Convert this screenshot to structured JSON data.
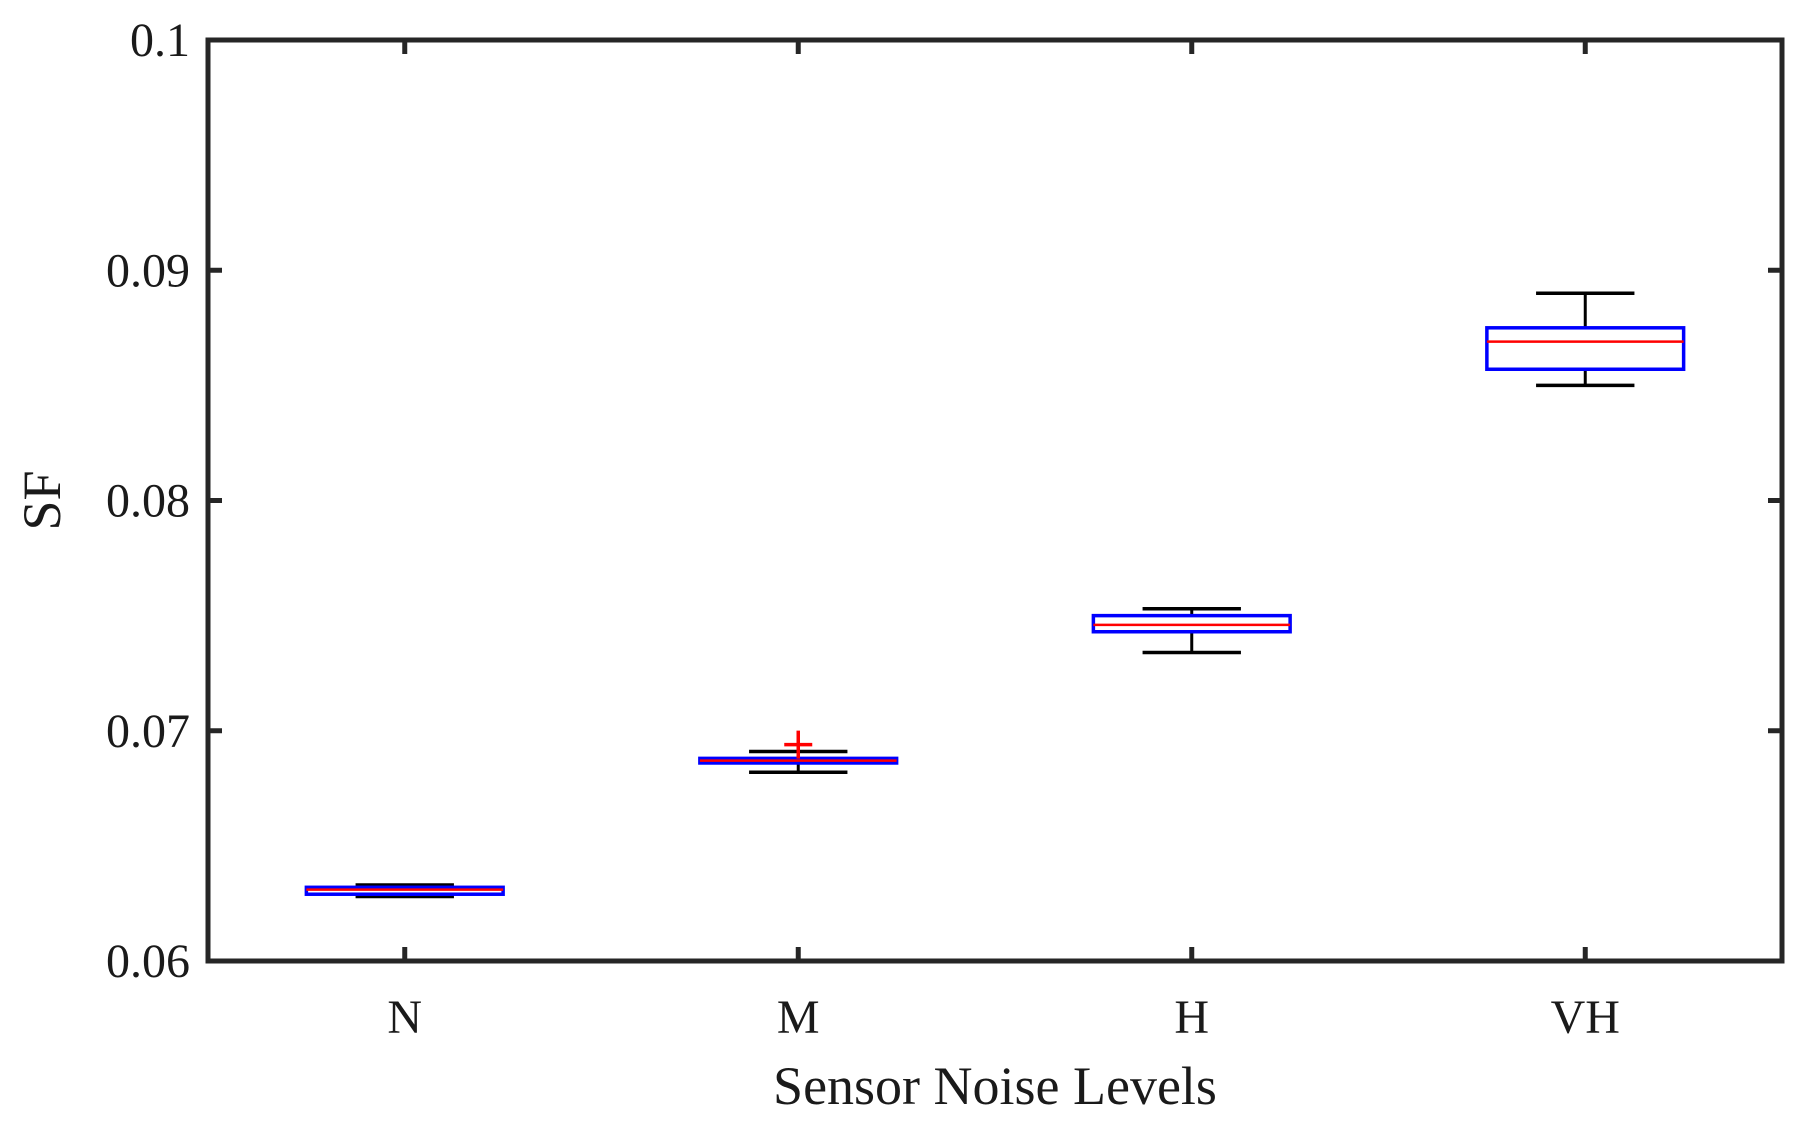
{
  "chart_data": {
    "type": "box",
    "title": "",
    "xlabel": "Sensor Noise Levels",
    "ylabel": "SF",
    "ylim": [
      0.06,
      0.1
    ],
    "yticks": [
      "0.06",
      "0.07",
      "0.08",
      "0.09",
      "0.1"
    ],
    "ytick_values": [
      0.06,
      0.07,
      0.08,
      0.09,
      0.1
    ],
    "categories": [
      "N",
      "M",
      "H",
      "VH"
    ],
    "boxes": [
      {
        "category": "N",
        "whisker_low": 0.0628,
        "q1": 0.0629,
        "median": 0.0631,
        "q3": 0.0632,
        "whisker_high": 0.0633,
        "outliers": []
      },
      {
        "category": "M",
        "whisker_low": 0.0682,
        "q1": 0.0686,
        "median": 0.0687,
        "q3": 0.0688,
        "whisker_high": 0.0691,
        "outliers": [
          0.0694
        ]
      },
      {
        "category": "H",
        "whisker_low": 0.0734,
        "q1": 0.0743,
        "median": 0.0746,
        "q3": 0.075,
        "whisker_high": 0.0753,
        "outliers": []
      },
      {
        "category": "VH",
        "whisker_low": 0.085,
        "q1": 0.0857,
        "median": 0.0869,
        "q3": 0.0875,
        "whisker_high": 0.089,
        "outliers": []
      }
    ],
    "grid": false,
    "colors": {
      "box": "#0000ff",
      "median": "#ff0000",
      "whisker": "#000000",
      "outlier": "#ff0000",
      "axes": "#262626"
    }
  }
}
